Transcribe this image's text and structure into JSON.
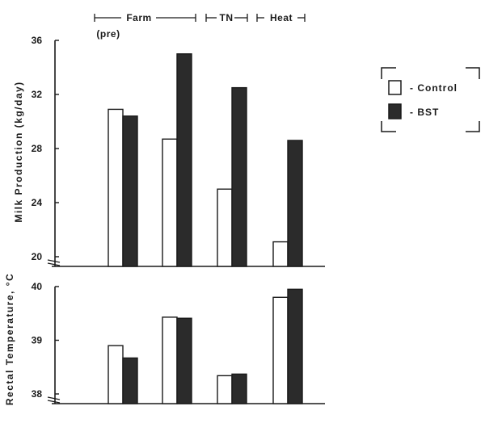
{
  "chart_data": [
    {
      "type": "bar",
      "ylabel": "Milk Production (kg/day)",
      "ylim": [
        20,
        36
      ],
      "yticks": [
        "20",
        "24",
        "28",
        "32",
        "36"
      ],
      "y_axis_break": true,
      "grid": false,
      "categories": [
        "Farm (pre)",
        "Farm",
        "TN",
        "Heat"
      ],
      "series": [
        {
          "name": "Control",
          "values": [
            30.9,
            28.7,
            25.0,
            21.1
          ]
        },
        {
          "name": "BST",
          "values": [
            30.4,
            35.0,
            32.5,
            28.6
          ]
        }
      ]
    },
    {
      "type": "bar",
      "ylabel": "Rectal Temperature, °C",
      "ylim": [
        38,
        40
      ],
      "yticks": [
        "38",
        "39",
        "40"
      ],
      "y_axis_break": true,
      "grid": false,
      "categories": [
        "Farm (pre)",
        "Farm",
        "TN",
        "Heat"
      ],
      "series": [
        {
          "name": "Control",
          "values": [
            38.9,
            39.43,
            38.34,
            39.8
          ]
        },
        {
          "name": "BST",
          "values": [
            38.67,
            39.41,
            38.37,
            39.95
          ]
        }
      ]
    }
  ],
  "periods": [
    {
      "label": "Farm",
      "sublabel": "(pre)"
    },
    {
      "label": "TN"
    },
    {
      "label": "Heat"
    }
  ],
  "legend": {
    "placement": "right",
    "items": [
      {
        "label": "- Control",
        "color": "#ffffff"
      },
      {
        "label": "- BST",
        "color": "#2b2b2b"
      }
    ]
  },
  "colors": {
    "control": "#ffffff",
    "bst": "#2b2b2b",
    "ink": "#1a1a1a"
  }
}
